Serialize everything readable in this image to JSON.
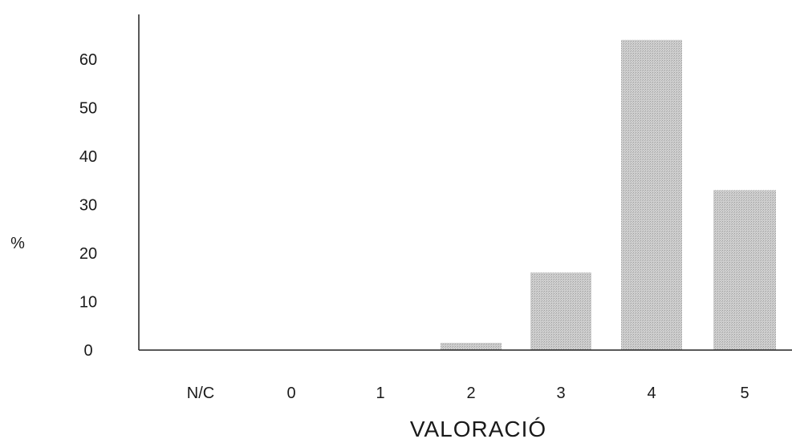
{
  "chart_data": {
    "type": "bar",
    "categories": [
      "N/C",
      "0",
      "1",
      "2",
      "3",
      "4",
      "5"
    ],
    "values": [
      0,
      0,
      0,
      1.5,
      16,
      64,
      33
    ],
    "xlabel": "VALORACIÓ",
    "ylabel": "%",
    "yticks": [
      "0",
      "10",
      "20",
      "30",
      "40",
      "50",
      "60"
    ],
    "ylim": [
      0,
      65
    ],
    "grid": false,
    "bar_color": "#c4c4c4"
  }
}
